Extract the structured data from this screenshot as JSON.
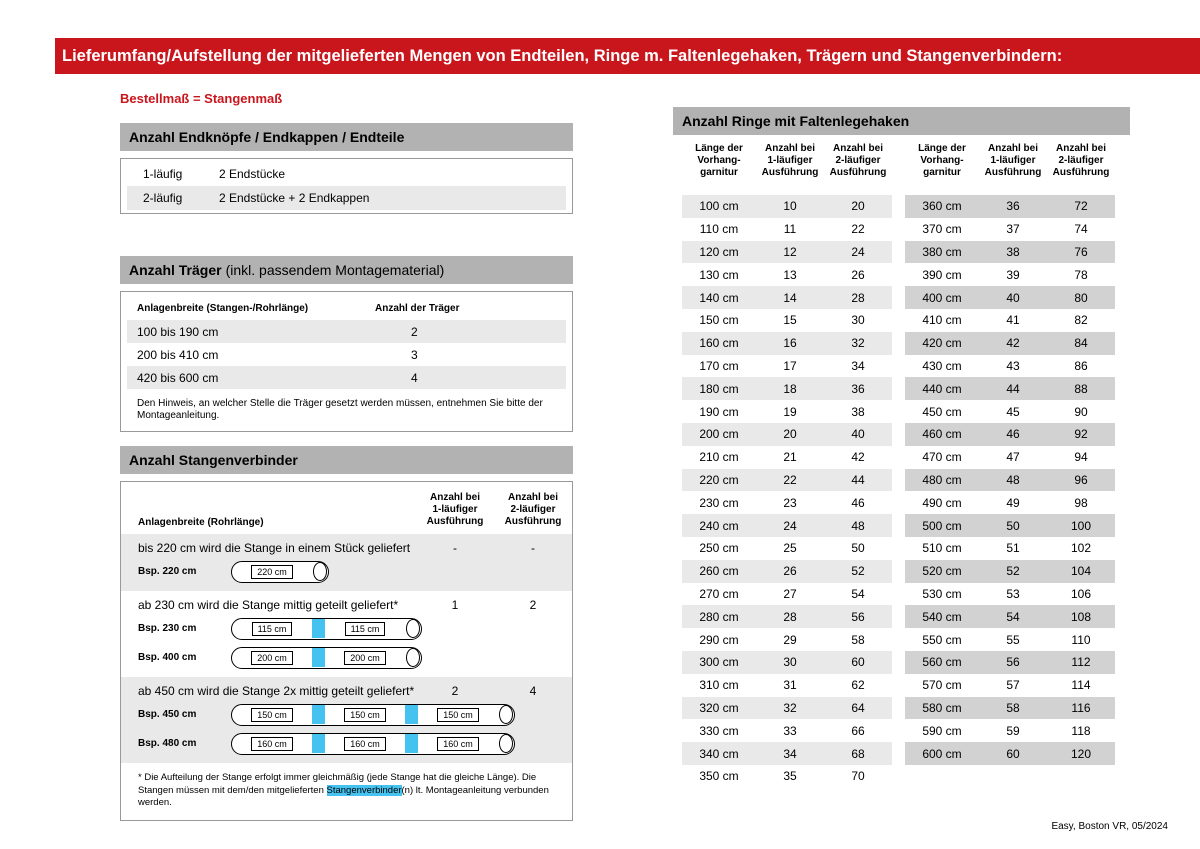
{
  "banner": {
    "title": "Lieferumfang/Aufstellung der mitgelieferten Mengen von Endteilen, Ringe m. Faltenlegehaken, Trägern und Stangenverbindern:"
  },
  "subtitle": "Bestellmaß = Stangenmaß",
  "colors": {
    "banner_red": "#c9161d",
    "header_gray": "#b2b2b2",
    "row_light": "#e9e9e9",
    "row_dark": "#d2d2d2",
    "connector_blue": "#45c2f0"
  },
  "endteile": {
    "header": "Anzahl Endknöpfe / Endkappen / Endteile",
    "rows": [
      [
        "1-läufig",
        "2 Endstücke"
      ],
      [
        "2-läufig",
        "2 Endstücke + 2 Endkappen"
      ]
    ]
  },
  "traeger": {
    "header_bold": "Anzahl Träger",
    "header_rest": "(inkl. passendem Montagematerial)",
    "col1": "Anlagenbreite (Stangen-/Rohrlänge)",
    "col2": "Anzahl der Träger",
    "rows": [
      [
        "100 bis 190 cm",
        "2"
      ],
      [
        "200 bis 410 cm",
        "3"
      ],
      [
        "420 bis 600 cm",
        "4"
      ]
    ],
    "note": "Den Hinweis, an welcher Stelle die Träger gesetzt werden müssen, entnehmen Sie bitte der Montageanleitung."
  },
  "verbinder": {
    "header": "Anzahl Stangenverbinder",
    "col1": "Anlagenbreite (Rohrlänge)",
    "col2": "Anzahl bei\n1-läufiger\nAusführung",
    "col3": "Anzahl bei\n2-läufiger\nAusführung",
    "sections": [
      {
        "text": "bis 220 cm wird die Stange in einem Stück geliefert",
        "val1": "-",
        "val2": "-",
        "examples": [
          {
            "label": "Bsp. 220 cm",
            "segments": [
              "220 cm"
            ]
          }
        ]
      },
      {
        "text": "ab 230 cm wird die Stange mittig geteilt geliefert*",
        "val1": "1",
        "val2": "2",
        "examples": [
          {
            "label": "Bsp. 230 cm",
            "segments": [
              "115 cm",
              "115 cm"
            ]
          },
          {
            "label": "Bsp. 400 cm",
            "segments": [
              "200 cm",
              "200 cm"
            ]
          }
        ]
      },
      {
        "text": "ab 450 cm wird die Stange 2x mittig geteilt geliefert*",
        "val1": "2",
        "val2": "4",
        "examples": [
          {
            "label": "Bsp. 450 cm",
            "segments": [
              "150 cm",
              "150 cm",
              "150 cm"
            ]
          },
          {
            "label": "Bsp. 480 cm",
            "segments": [
              "160 cm",
              "160 cm",
              "160 cm"
            ]
          }
        ]
      }
    ],
    "footnote_pre": "* Die Aufteilung der Stange erfolgt immer gleichmäßig (jede Stange hat die gleiche Länge). Die Stangen müssen mit dem/den mitgelieferten ",
    "footnote_highlight": "Stangenverbinder",
    "footnote_post": "(n) lt. Montageanleitung verbunden werden."
  },
  "rings": {
    "header": "Anzahl Ringe mit Faltenlegehaken",
    "col_len": "Länge der\nVorhang-\ngarnitur",
    "col_1l": "Anzahl bei\n1-läufiger\nAusführung",
    "col_2l": "Anzahl bei\n2-läufiger\nAusführung",
    "left_rows": [
      [
        "100 cm",
        "10",
        "20"
      ],
      [
        "110 cm",
        "11",
        "22"
      ],
      [
        "120 cm",
        "12",
        "24"
      ],
      [
        "130 cm",
        "13",
        "26"
      ],
      [
        "140 cm",
        "14",
        "28"
      ],
      [
        "150 cm",
        "15",
        "30"
      ],
      [
        "160 cm",
        "16",
        "32"
      ],
      [
        "170 cm",
        "17",
        "34"
      ],
      [
        "180 cm",
        "18",
        "36"
      ],
      [
        "190 cm",
        "19",
        "38"
      ],
      [
        "200 cm",
        "20",
        "40"
      ],
      [
        "210 cm",
        "21",
        "42"
      ],
      [
        "220 cm",
        "22",
        "44"
      ],
      [
        "230 cm",
        "23",
        "46"
      ],
      [
        "240 cm",
        "24",
        "48"
      ],
      [
        "250 cm",
        "25",
        "50"
      ],
      [
        "260 cm",
        "26",
        "52"
      ],
      [
        "270 cm",
        "27",
        "54"
      ],
      [
        "280 cm",
        "28",
        "56"
      ],
      [
        "290 cm",
        "29",
        "58"
      ],
      [
        "300 cm",
        "30",
        "60"
      ],
      [
        "310 cm",
        "31",
        "62"
      ],
      [
        "320 cm",
        "32",
        "64"
      ],
      [
        "330 cm",
        "33",
        "66"
      ],
      [
        "340 cm",
        "34",
        "68"
      ],
      [
        "350 cm",
        "35",
        "70"
      ]
    ],
    "right_rows": [
      [
        "360 cm",
        "36",
        "72"
      ],
      [
        "370 cm",
        "37",
        "74"
      ],
      [
        "380 cm",
        "38",
        "76"
      ],
      [
        "390 cm",
        "39",
        "78"
      ],
      [
        "400 cm",
        "40",
        "80"
      ],
      [
        "410 cm",
        "41",
        "82"
      ],
      [
        "420 cm",
        "42",
        "84"
      ],
      [
        "430 cm",
        "43",
        "86"
      ],
      [
        "440 cm",
        "44",
        "88"
      ],
      [
        "450 cm",
        "45",
        "90"
      ],
      [
        "460 cm",
        "46",
        "92"
      ],
      [
        "470 cm",
        "47",
        "94"
      ],
      [
        "480 cm",
        "48",
        "96"
      ],
      [
        "490 cm",
        "49",
        "98"
      ],
      [
        "500 cm",
        "50",
        "100"
      ],
      [
        "510 cm",
        "51",
        "102"
      ],
      [
        "520 cm",
        "52",
        "104"
      ],
      [
        "530 cm",
        "53",
        "106"
      ],
      [
        "540 cm",
        "54",
        "108"
      ],
      [
        "550 cm",
        "55",
        "110"
      ],
      [
        "560 cm",
        "56",
        "112"
      ],
      [
        "570 cm",
        "57",
        "114"
      ],
      [
        "580 cm",
        "58",
        "116"
      ],
      [
        "590 cm",
        "59",
        "118"
      ],
      [
        "600 cm",
        "60",
        "120"
      ]
    ]
  },
  "footer": "Easy, Boston VR, 05/2024"
}
